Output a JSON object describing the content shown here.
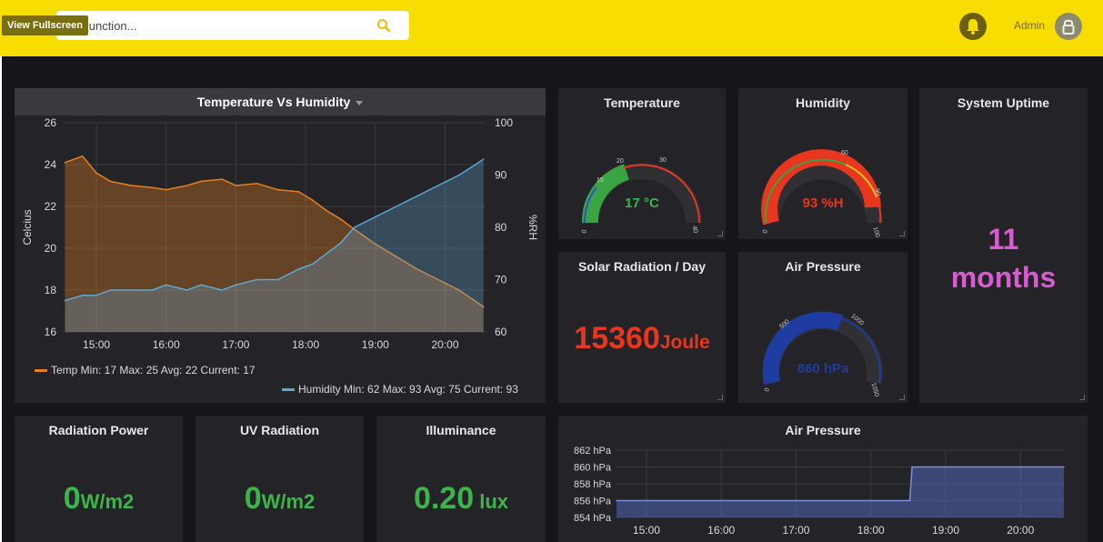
{
  "topbar": {
    "search_placeholder": "d junction...",
    "fullscreen_tooltip": "View Fullscreen",
    "user_label": "Admin"
  },
  "colors": {
    "topbar": "#f7dd00",
    "temp": "#e67e22",
    "humidity": "#5fa8d3",
    "green": "#3cb54a",
    "red": "#e8361f",
    "magenta": "#d85bd1",
    "blue": "#1f3ca0"
  },
  "temp_humidity": {
    "title": "Temperature Vs Humidity",
    "temp_legend": "Temp  Min: 17  Max: 25  Avg: 22  Current: 17",
    "humidity_legend": "Humidity  Min: 62  Max: 93  Avg: 75  Current: 93",
    "chart_data": {
      "type": "line",
      "x_ticks": [
        "15:00",
        "16:00",
        "17:00",
        "18:00",
        "19:00",
        "20:00"
      ],
      "xlim_hours": [
        14.53,
        20.58
      ],
      "ylabel": "Celcius",
      "ylabel_right": "%RH",
      "y_ticks": [
        "16",
        "18",
        "20",
        "22",
        "24",
        "26"
      ],
      "y_ticks_right": [
        "60",
        "70",
        "80",
        "90",
        "100"
      ],
      "ylim": [
        16,
        26
      ],
      "ylim_right": [
        60,
        100
      ],
      "series": [
        {
          "name": "Temp",
          "axis": "left",
          "x_hours": [
            14.55,
            14.8,
            15.0,
            15.2,
            15.5,
            15.8,
            16.0,
            16.3,
            16.5,
            16.8,
            17.0,
            17.3,
            17.6,
            17.9,
            18.1,
            18.3,
            18.5,
            18.7,
            19.0,
            19.3,
            19.6,
            19.9,
            20.2,
            20.55
          ],
          "values": [
            24.1,
            24.4,
            23.6,
            23.2,
            23.0,
            22.9,
            22.8,
            23.0,
            23.2,
            23.3,
            23.0,
            23.1,
            22.8,
            22.7,
            22.3,
            21.8,
            21.4,
            20.9,
            20.2,
            19.6,
            19.0,
            18.5,
            18.0,
            17.2
          ]
        },
        {
          "name": "Humidity",
          "axis": "right",
          "x_hours": [
            14.55,
            14.8,
            15.0,
            15.2,
            15.5,
            15.8,
            16.0,
            16.3,
            16.5,
            16.8,
            17.0,
            17.3,
            17.6,
            17.9,
            18.1,
            18.3,
            18.5,
            18.7,
            19.0,
            19.3,
            19.6,
            19.9,
            20.2,
            20.55
          ],
          "values": [
            66,
            67,
            67,
            68,
            68,
            68,
            69,
            68,
            69,
            68,
            69,
            70,
            70,
            72,
            73,
            75,
            77,
            80,
            82,
            84,
            86,
            88,
            90,
            93
          ]
        }
      ]
    }
  },
  "temperature": {
    "title": "Temperature",
    "value": "17 °C",
    "ticks": [
      "0",
      "15",
      "20",
      "30",
      "40"
    ],
    "gauge": {
      "value": 17,
      "min": 0,
      "max": 40
    }
  },
  "humidity": {
    "title": "Humidity",
    "value": "93 %H",
    "ticks": [
      "0",
      "60",
      "90",
      "100"
    ],
    "gauge": {
      "value": 93,
      "min": 0,
      "max": 100
    }
  },
  "uptime": {
    "title": "System Uptime",
    "line1": "11",
    "line2": "months"
  },
  "solar": {
    "title": "Solar Radiation / Day",
    "value": "15360",
    "unit": "Joule"
  },
  "airpressure_gauge": {
    "title": "Air Pressure",
    "value": "860 hPa",
    "ticks": [
      "0",
      "500",
      "1000",
      "1050"
    ],
    "gauge": {
      "value": 860,
      "min": 0,
      "max": 1050
    }
  },
  "radiation": {
    "title": "Radiation Power",
    "value": "0",
    "unit": "W/m2"
  },
  "uv": {
    "title": "UV Radiation",
    "value": "0",
    "unit": "W/m2"
  },
  "illuminance": {
    "title": "Illuminance",
    "value": "0.20",
    "unit": " lux"
  },
  "airpressure_chart": {
    "title": "Air Pressure",
    "chart_data": {
      "type": "area",
      "x_ticks": [
        "15:00",
        "16:00",
        "17:00",
        "18:00",
        "19:00",
        "20:00"
      ],
      "xlim_hours": [
        14.6,
        20.58
      ],
      "y_ticks": [
        "854 hPa",
        "856 hPa",
        "858 hPa",
        "860 hPa",
        "862 hPa"
      ],
      "ylim": [
        854,
        862
      ],
      "series": [
        {
          "name": "",
          "x_hours": [
            14.6,
            18.52,
            18.55,
            20.58
          ],
          "values": [
            856,
            856,
            860,
            860
          ]
        }
      ]
    }
  }
}
